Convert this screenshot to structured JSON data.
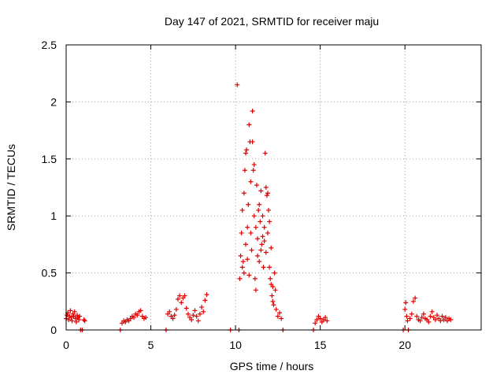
{
  "chart_data": {
    "type": "scatter",
    "title": "Day 147 of 2021, SRMTID for receiver maju",
    "xlabel": "GPS time / hours",
    "ylabel": "SRMTID / TECUs",
    "xlim": [
      0,
      24.5
    ],
    "ylim": [
      0,
      2.5
    ],
    "xticks": [
      "0",
      "5",
      "10",
      "15",
      "20"
    ],
    "xtick_values": [
      0,
      5,
      10,
      15,
      20
    ],
    "yticks": [
      "0",
      "0.5",
      "1",
      "1.5",
      "2",
      "2.5"
    ],
    "ytick_values": [
      0,
      0.5,
      1,
      1.5,
      2,
      2.5
    ],
    "grid": true,
    "marker": "+",
    "colors": {
      "points": "#e00000",
      "grid": "#a0a0a0",
      "axis": "#000000"
    },
    "series": [
      {
        "name": "SRMTID",
        "points": [
          [
            0.0,
            0.1
          ],
          [
            0.05,
            0.13
          ],
          [
            0.1,
            0.15
          ],
          [
            0.15,
            0.09
          ],
          [
            0.2,
            0.12
          ],
          [
            0.25,
            0.17
          ],
          [
            0.3,
            0.11
          ],
          [
            0.35,
            0.08
          ],
          [
            0.4,
            0.14
          ],
          [
            0.45,
            0.12
          ],
          [
            0.5,
            0.16
          ],
          [
            0.55,
            0.1
          ],
          [
            0.6,
            0.07
          ],
          [
            0.65,
            0.13
          ],
          [
            0.7,
            0.11
          ],
          [
            0.75,
            0.09
          ],
          [
            0.8,
            0.12
          ],
          [
            0.85,
            0.0
          ],
          [
            0.95,
            0.0
          ],
          [
            1.05,
            0.09
          ],
          [
            1.1,
            0.08
          ],
          [
            3.2,
            0.0
          ],
          [
            3.3,
            0.06
          ],
          [
            3.4,
            0.08
          ],
          [
            3.5,
            0.07
          ],
          [
            3.6,
            0.09
          ],
          [
            3.7,
            0.08
          ],
          [
            3.8,
            0.1
          ],
          [
            3.9,
            0.12
          ],
          [
            4.0,
            0.11
          ],
          [
            4.1,
            0.14
          ],
          [
            4.2,
            0.13
          ],
          [
            4.3,
            0.16
          ],
          [
            4.4,
            0.17
          ],
          [
            4.5,
            0.12
          ],
          [
            4.6,
            0.1
          ],
          [
            4.7,
            0.11
          ],
          [
            5.9,
            0.0
          ],
          [
            6.0,
            0.14
          ],
          [
            6.1,
            0.16
          ],
          [
            6.2,
            0.12
          ],
          [
            6.3,
            0.1
          ],
          [
            6.4,
            0.13
          ],
          [
            6.5,
            0.18
          ],
          [
            6.6,
            0.27
          ],
          [
            6.7,
            0.3
          ],
          [
            6.8,
            0.24
          ],
          [
            6.9,
            0.28
          ],
          [
            7.0,
            0.3
          ],
          [
            7.1,
            0.19
          ],
          [
            7.2,
            0.14
          ],
          [
            7.3,
            0.11
          ],
          [
            7.4,
            0.09
          ],
          [
            7.5,
            0.13
          ],
          [
            7.6,
            0.17
          ],
          [
            7.7,
            0.12
          ],
          [
            7.8,
            0.08
          ],
          [
            7.9,
            0.14
          ],
          [
            8.0,
            0.2
          ],
          [
            8.1,
            0.16
          ],
          [
            8.2,
            0.26
          ],
          [
            8.3,
            0.31
          ],
          [
            9.7,
            0.0
          ],
          [
            10.2,
            0.0
          ],
          [
            10.25,
            0.45
          ],
          [
            10.3,
            0.65
          ],
          [
            10.35,
            0.85
          ],
          [
            10.4,
            1.05
          ],
          [
            10.45,
            0.6
          ],
          [
            10.5,
            1.2
          ],
          [
            10.55,
            1.4
          ],
          [
            10.6,
            1.55
          ],
          [
            10.65,
            1.58
          ],
          [
            10.7,
            0.9
          ],
          [
            10.75,
            1.1
          ],
          [
            10.8,
            1.8
          ],
          [
            10.85,
            1.65
          ],
          [
            10.9,
            1.3
          ],
          [
            10.95,
            0.7
          ],
          [
            11.0,
            1.92
          ],
          [
            11.05,
            1.4
          ],
          [
            11.1,
            1.0
          ],
          [
            11.15,
            0.45
          ],
          [
            11.2,
            0.35
          ],
          [
            11.25,
            1.27
          ],
          [
            11.3,
            0.8
          ],
          [
            11.35,
            1.05
          ],
          [
            11.4,
            0.6
          ],
          [
            11.45,
            0.95
          ],
          [
            11.5,
            1.22
          ],
          [
            11.55,
            0.75
          ],
          [
            11.6,
            0.82
          ],
          [
            11.65,
            0.55
          ],
          [
            11.7,
            0.9
          ],
          [
            11.75,
            1.55
          ],
          [
            11.8,
            1.25
          ],
          [
            11.85,
            1.18
          ],
          [
            11.9,
            0.85
          ],
          [
            11.95,
            1.05
          ],
          [
            12.0,
            0.55
          ],
          [
            12.05,
            0.45
          ],
          [
            12.1,
            0.4
          ],
          [
            12.15,
            0.3
          ],
          [
            12.2,
            0.25
          ],
          [
            12.25,
            0.22
          ],
          [
            12.3,
            0.5
          ],
          [
            12.35,
            0.35
          ],
          [
            12.4,
            0.18
          ],
          [
            12.5,
            0.12
          ],
          [
            12.6,
            0.15
          ],
          [
            12.7,
            0.1
          ],
          [
            12.8,
            0.0
          ],
          [
            10.1,
            2.15
          ],
          [
            10.4,
            0.55
          ],
          [
            10.5,
            0.5
          ],
          [
            10.6,
            0.75
          ],
          [
            10.7,
            0.62
          ],
          [
            10.8,
            0.48
          ],
          [
            10.9,
            0.85
          ],
          [
            11.0,
            1.65
          ],
          [
            11.1,
            1.45
          ],
          [
            11.2,
            0.9
          ],
          [
            11.3,
            0.65
          ],
          [
            11.4,
            1.1
          ],
          [
            11.5,
            0.7
          ],
          [
            11.6,
            1.0
          ],
          [
            11.7,
            0.78
          ],
          [
            11.8,
            0.68
          ],
          [
            11.9,
            1.2
          ],
          [
            12.0,
            0.95
          ],
          [
            12.1,
            0.72
          ],
          [
            12.2,
            0.38
          ],
          [
            14.6,
            0.0
          ],
          [
            14.7,
            0.06
          ],
          [
            14.8,
            0.09
          ],
          [
            14.9,
            0.12
          ],
          [
            15.0,
            0.1
          ],
          [
            15.1,
            0.07
          ],
          [
            15.2,
            0.09
          ],
          [
            15.3,
            0.11
          ],
          [
            15.4,
            0.08
          ],
          [
            19.9,
            0.0
          ],
          [
            20.0,
            0.18
          ],
          [
            20.05,
            0.24
          ],
          [
            20.1,
            0.12
          ],
          [
            20.15,
            0.08
          ],
          [
            20.2,
            0.0
          ],
          [
            20.3,
            0.1
          ],
          [
            20.4,
            0.14
          ],
          [
            20.5,
            0.25
          ],
          [
            20.6,
            0.28
          ],
          [
            20.7,
            0.12
          ],
          [
            20.8,
            0.09
          ],
          [
            20.9,
            0.08
          ],
          [
            21.0,
            0.11
          ],
          [
            21.1,
            0.14
          ],
          [
            21.2,
            0.1
          ],
          [
            21.3,
            0.09
          ],
          [
            21.4,
            0.07
          ],
          [
            21.5,
            0.12
          ],
          [
            21.6,
            0.16
          ],
          [
            21.7,
            0.11
          ],
          [
            21.8,
            0.09
          ],
          [
            21.9,
            0.13
          ],
          [
            22.0,
            0.1
          ],
          [
            22.1,
            0.08
          ],
          [
            22.2,
            0.12
          ],
          [
            22.3,
            0.09
          ],
          [
            22.4,
            0.11
          ],
          [
            22.5,
            0.08
          ],
          [
            22.6,
            0.1
          ],
          [
            22.7,
            0.09
          ]
        ]
      }
    ]
  }
}
